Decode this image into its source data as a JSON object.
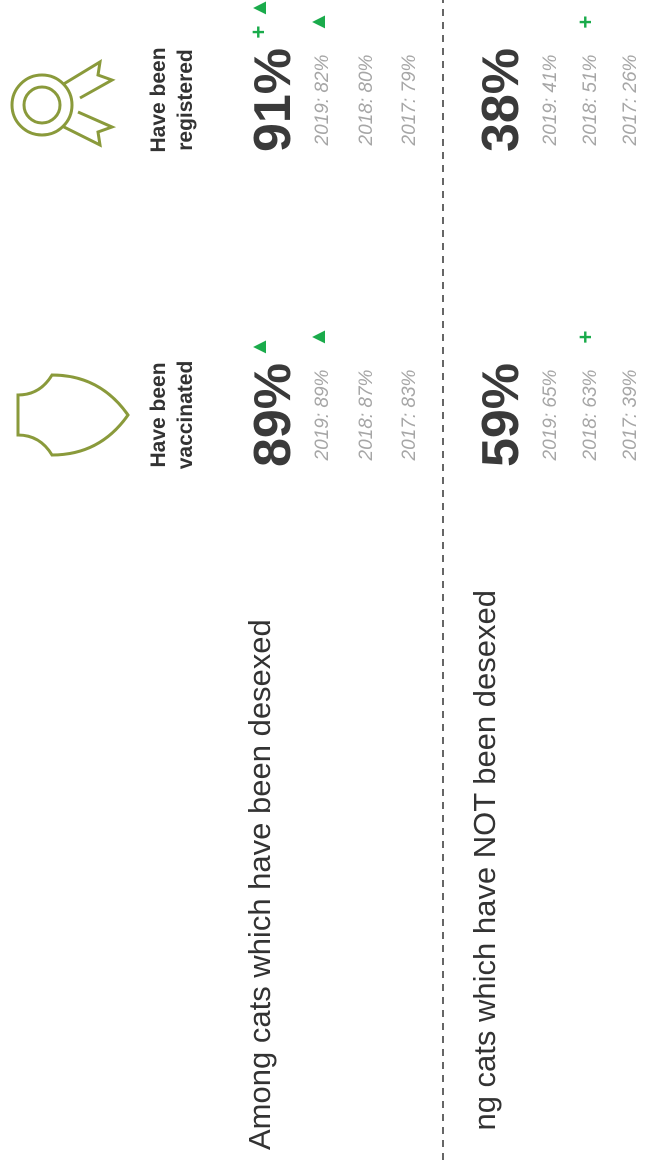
{
  "columns": [
    {
      "label_lines": [
        "Have been",
        "vaccinated"
      ]
    },
    {
      "label_lines": [
        "Have been",
        "registered"
      ]
    }
  ],
  "groups": [
    {
      "title": "Among cats which have been desexed",
      "cells": [
        {
          "value": "89%",
          "marks": [
            "▲"
          ],
          "history": [
            {
              "text": "2019: 89%",
              "mark": "▲"
            },
            {
              "text": "2018: 87%"
            },
            {
              "text": "2017: 83%"
            }
          ]
        },
        {
          "value": "91%",
          "marks": [
            "+",
            "▲"
          ],
          "history": [
            {
              "text": "2019: 82%",
              "mark": "▲"
            },
            {
              "text": "2018: 80%"
            },
            {
              "text": "2017: 79%"
            }
          ]
        }
      ]
    },
    {
      "title": "ng cats which have NOT been desexed",
      "cells": [
        {
          "value": "59%",
          "marks": [],
          "history": [
            {
              "text": "2019: 65%"
            },
            {
              "text": "2018: 63%",
              "mark": "+"
            },
            {
              "text": "2017: 39%"
            }
          ]
        },
        {
          "value": "38%",
          "marks": [],
          "history": [
            {
              "text": "2019: 41%"
            },
            {
              "text": "2018: 51%",
              "mark": "+"
            },
            {
              "text": "2017: 26%"
            }
          ]
        }
      ]
    }
  ]
}
